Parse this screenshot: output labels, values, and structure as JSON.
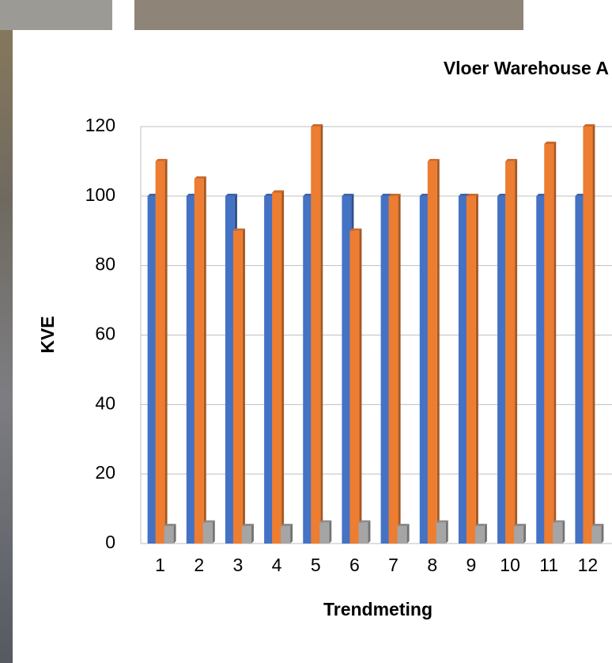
{
  "chart_data": {
    "type": "bar",
    "title": "Vloer Warehouse A",
    "x_label": "Trendmeting",
    "y_label": "KVE",
    "categories": [
      "1",
      "2",
      "3",
      "4",
      "5",
      "6",
      "7",
      "8",
      "9",
      "10",
      "11",
      "12"
    ],
    "series": [
      {
        "color": "#4472c4",
        "values": [
          100,
          100,
          100,
          100,
          100,
          100,
          100,
          100,
          100,
          100,
          100,
          100
        ]
      },
      {
        "color": "#ed7d31",
        "values": [
          110,
          105,
          90,
          101,
          120,
          90,
          100,
          110,
          100,
          110,
          115,
          120
        ]
      },
      {
        "color": "#a5a5a5",
        "values": [
          5,
          6,
          5,
          5,
          6,
          6,
          5,
          6,
          5,
          5,
          6,
          5
        ]
      }
    ],
    "ylim": [
      0,
      120
    ],
    "yticks": [
      0,
      20,
      40,
      60,
      80,
      100,
      120
    ],
    "grid": true
  }
}
